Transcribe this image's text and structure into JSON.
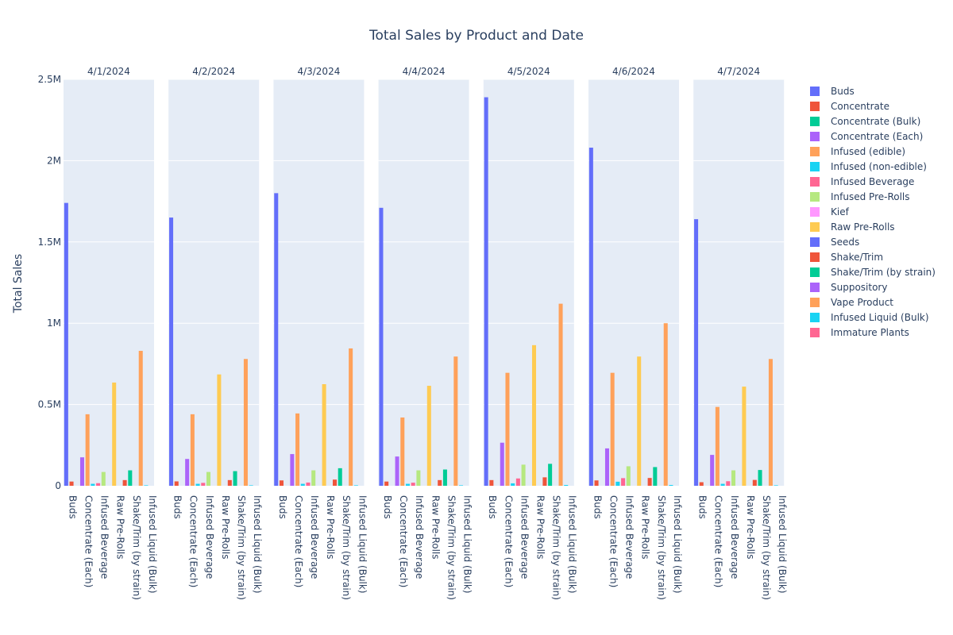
{
  "chart_data": {
    "type": "bar",
    "title": "Total Sales by Product and Date",
    "ylabel": "Total Sales",
    "ylim": [
      0,
      2500000
    ],
    "y_ticks": [
      {
        "value": 0,
        "label": "0"
      },
      {
        "value": 500000,
        "label": "0.5M"
      },
      {
        "value": 1000000,
        "label": "1M"
      },
      {
        "value": 1500000,
        "label": "1.5M"
      },
      {
        "value": 2000000,
        "label": "2M"
      },
      {
        "value": 2500000,
        "label": "2.5M"
      }
    ],
    "x_tick_labels": [
      "Buds",
      "Concentrate (Each)",
      "Infused Beverage",
      "Raw Pre-Rolls",
      "Shake/Trim (by strain)",
      "Infused Liquid (Bulk)"
    ],
    "categories": [
      "Buds",
      "Concentrate",
      "Concentrate (Bulk)",
      "Concentrate (Each)",
      "Infused (edible)",
      "Infused (non-edible)",
      "Infused Beverage",
      "Infused Pre-Rolls",
      "Kief",
      "Raw Pre-Rolls",
      "Seeds",
      "Shake/Trim",
      "Shake/Trim (by strain)",
      "Suppository",
      "Vape Product",
      "Infused Liquid (Bulk)",
      "Immature Plants"
    ],
    "colors": [
      "#636efa",
      "#EF553B",
      "#00cc96",
      "#ab63fa",
      "#FFA15A",
      "#19d3f3",
      "#FF6692",
      "#B6E880",
      "#FF97FF",
      "#FECB52",
      "#636efa",
      "#EF553B",
      "#00cc96",
      "#ab63fa",
      "#FFA15A",
      "#19d3f3",
      "#FF6692"
    ],
    "legend_position": "right",
    "grid": true,
    "facets": [
      {
        "date": "4/1/2024",
        "values": [
          1740000,
          26000,
          0,
          175000,
          440000,
          12000,
          16000,
          85000,
          0,
          635000,
          0,
          35000,
          95000,
          0,
          830000,
          3000,
          0
        ]
      },
      {
        "date": "4/2/2024",
        "values": [
          1650000,
          27000,
          0,
          165000,
          440000,
          12000,
          18000,
          85000,
          0,
          685000,
          0,
          35000,
          90000,
          0,
          780000,
          3000,
          0
        ]
      },
      {
        "date": "4/3/2024",
        "values": [
          1800000,
          33000,
          0,
          195000,
          445000,
          12000,
          20000,
          95000,
          0,
          625000,
          0,
          38000,
          108000,
          0,
          845000,
          3000,
          0
        ]
      },
      {
        "date": "4/4/2024",
        "values": [
          1710000,
          26000,
          0,
          180000,
          420000,
          12000,
          19000,
          95000,
          0,
          615000,
          0,
          35000,
          100000,
          0,
          795000,
          3000,
          0
        ]
      },
      {
        "date": "4/5/2024",
        "values": [
          2390000,
          35000,
          0,
          265000,
          695000,
          15000,
          45000,
          130000,
          0,
          865000,
          0,
          52000,
          135000,
          0,
          1120000,
          5000,
          0
        ]
      },
      {
        "date": "4/6/2024",
        "values": [
          2080000,
          33000,
          0,
          230000,
          695000,
          25000,
          47000,
          120000,
          0,
          795000,
          0,
          48000,
          115000,
          0,
          1000000,
          5000,
          0
        ]
      },
      {
        "date": "4/7/2024",
        "values": [
          1640000,
          22000,
          0,
          190000,
          485000,
          12000,
          28000,
          95000,
          0,
          610000,
          0,
          36000,
          97000,
          0,
          780000,
          3000,
          0
        ]
      }
    ]
  }
}
